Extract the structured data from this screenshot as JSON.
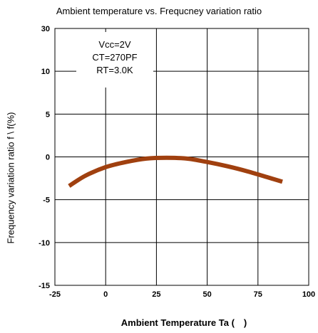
{
  "chart_data": {
    "type": "line",
    "title": "Ambient temperature vs. Frequcney variation ratio",
    "xlabel": "Ambient Temperature Ta ( )",
    "ylabel": "Frequency variation ratio     f \\ f(%)",
    "xlim": [
      -25,
      100
    ],
    "ylim": [
      -15,
      30
    ],
    "x_ticks": [
      "-25",
      "0",
      "25",
      "50",
      "75",
      "100"
    ],
    "y_ticks": [
      "30",
      "10",
      "5",
      "0",
      "-5",
      "-10",
      "-15"
    ],
    "grid": true,
    "annotation": [
      "Vcc=2V",
      "CT=270PF",
      "RT=3.0K"
    ],
    "series": [
      {
        "color": "#a0400f",
        "x": [
          -18,
          -10,
          0,
          10,
          20,
          30,
          40,
          50,
          60,
          70,
          80,
          87
        ],
        "y": [
          -3.4,
          -2.2,
          -1.2,
          -0.6,
          -0.2,
          -0.1,
          -0.2,
          -0.6,
          -1.1,
          -1.7,
          -2.4,
          -2.9
        ]
      }
    ]
  }
}
